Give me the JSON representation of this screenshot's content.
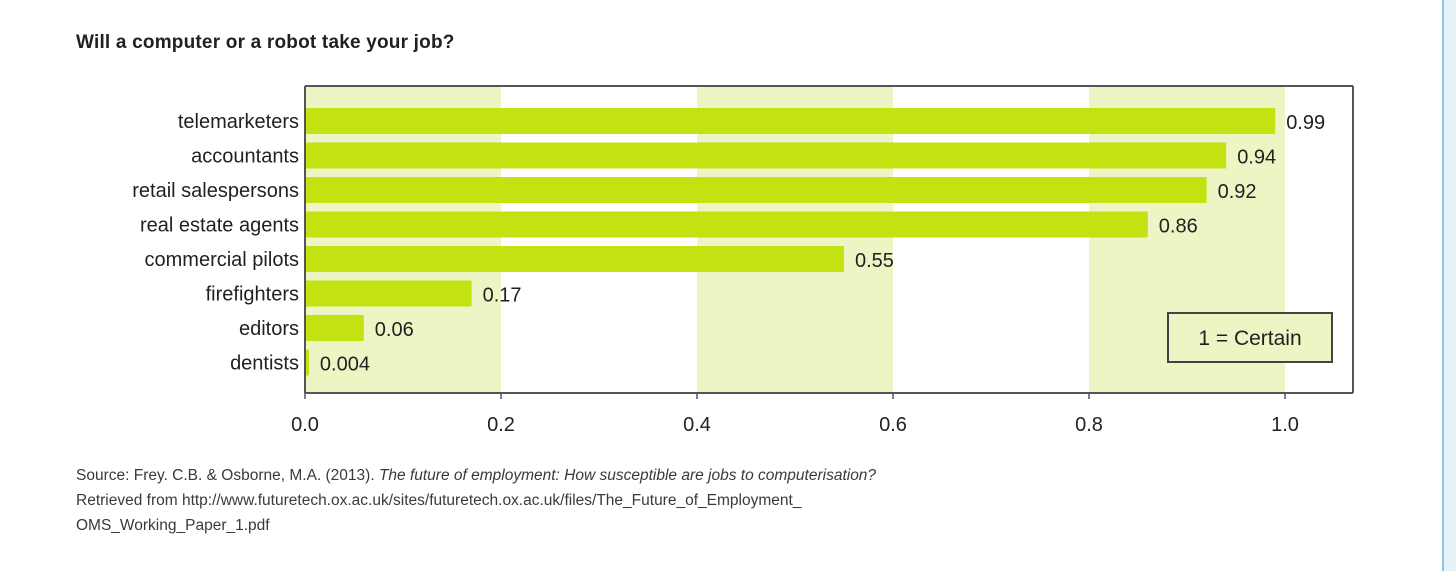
{
  "chart_data": {
    "type": "bar",
    "orientation": "horizontal",
    "title": "Will a computer or a robot take your job?",
    "categories": [
      "telemarketers",
      "accountants",
      "retail salespersons",
      "real estate agents",
      "commercial pilots",
      "firefighters",
      "editors",
      "dentists"
    ],
    "values": [
      0.99,
      0.94,
      0.92,
      0.86,
      0.55,
      0.17,
      0.06,
      0.004
    ],
    "value_labels": [
      "0.99",
      "0.94",
      "0.92",
      "0.86",
      "0.55",
      "0.17",
      "0.06",
      "0.004"
    ],
    "xlim": [
      0,
      1.0
    ],
    "x_ticks": [
      "0.0",
      "0.2",
      "0.4",
      "0.6",
      "0.8",
      "1.0"
    ],
    "x_tick_values": [
      0,
      0.2,
      0.4,
      0.6,
      0.8,
      1.0
    ],
    "xlabel": "",
    "ylabel": "",
    "legend": {
      "text": "1 = Certain",
      "position": "bottom-right"
    },
    "grid": "alternating vertical bands",
    "colors": {
      "bar": "#c4e111",
      "band": "#eef5c4",
      "axis": "#555555"
    }
  },
  "source": {
    "prefix": "Source: Frey. C.B. & Osborne, M.A. (2013). ",
    "title_italic": "The future of employment: How susceptible are jobs to computerisation?",
    "retrieved": "Retrieved from http://www.futuretech.ox.ac.uk/sites/futuretech.ox.ac.uk/files/The_Future_of_Employment_",
    "retrieved_cont": "OMS_Working_Paper_1.pdf"
  }
}
